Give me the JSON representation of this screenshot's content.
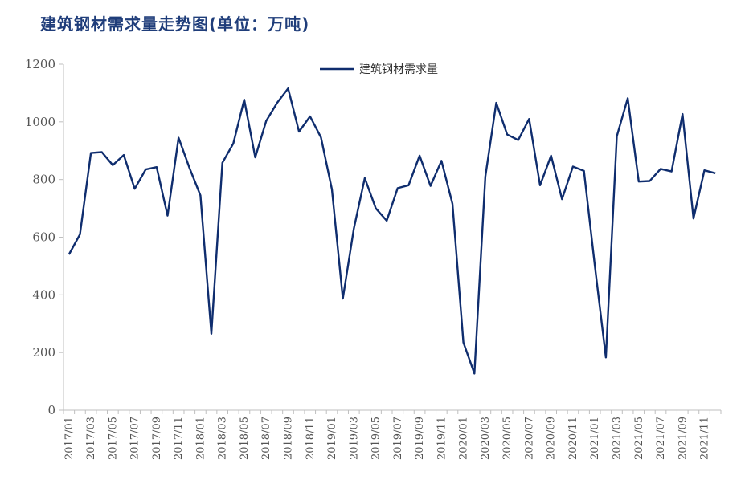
{
  "chart_data": {
    "type": "line",
    "title": "建筑钢材需求量走势图(单位：万吨)",
    "xlabel": "",
    "ylabel": "",
    "ylim": [
      0,
      1200
    ],
    "yticks": [
      0,
      200,
      400,
      600,
      800,
      1000,
      1200
    ],
    "grid": false,
    "legend_position": "top-center",
    "line_color": "#0f2d6e",
    "x": [
      "2017/01",
      "2017/02",
      "2017/03",
      "2017/04",
      "2017/05",
      "2017/06",
      "2017/07",
      "2017/08",
      "2017/09",
      "2017/10",
      "2017/11",
      "2017/12",
      "2018/01",
      "2018/02",
      "2018/03",
      "2018/04",
      "2018/05",
      "2018/06",
      "2018/07",
      "2018/08",
      "2018/09",
      "2018/10",
      "2018/11",
      "2018/12",
      "2019/01",
      "2019/02",
      "2019/03",
      "2019/04",
      "2019/05",
      "2019/06",
      "2019/07",
      "2019/08",
      "2019/09",
      "2019/10",
      "2019/11",
      "2019/12",
      "2020/01",
      "2020/02",
      "2020/03",
      "2020/04",
      "2020/05",
      "2020/06",
      "2020/07",
      "2020/08",
      "2020/09",
      "2020/10",
      "2020/11",
      "2020/12",
      "2021/01",
      "2021/02",
      "2021/03",
      "2021/04",
      "2021/05",
      "2021/06",
      "2021/07",
      "2021/08",
      "2021/09",
      "2021/10",
      "2021/11",
      "2021/12"
    ],
    "xtick_labels": [
      "2017/01",
      "2017/03",
      "2017/05",
      "2017/07",
      "2017/09",
      "2017/11",
      "2018/01",
      "2018/03",
      "2018/05",
      "2018/07",
      "2018/09",
      "2018/11",
      "2019/01",
      "2019/03",
      "2019/05",
      "2019/07",
      "2019/09",
      "2019/11",
      "2020/01",
      "2020/03",
      "2020/05",
      "2020/07",
      "2020/09",
      "2020/11",
      "2021/01",
      "2021/03",
      "2021/05",
      "2021/07",
      "2021/09",
      "2021/11"
    ],
    "series": [
      {
        "name": "建筑钢材需求量",
        "values": [
          540,
          610,
          892,
          895,
          850,
          885,
          768,
          835,
          843,
          675,
          945,
          840,
          745,
          265,
          858,
          925,
          1077,
          877,
          1003,
          1066,
          1116,
          966,
          1019,
          946,
          766,
          387,
          630,
          805,
          700,
          657,
          770,
          780,
          883,
          778,
          865,
          716,
          235,
          127,
          810,
          1066,
          956,
          937,
          1010,
          780,
          883,
          732,
          845,
          830,
          500,
          183,
          950,
          1082,
          793,
          795,
          837,
          828,
          1027,
          665,
          832,
          822
        ]
      }
    ]
  }
}
